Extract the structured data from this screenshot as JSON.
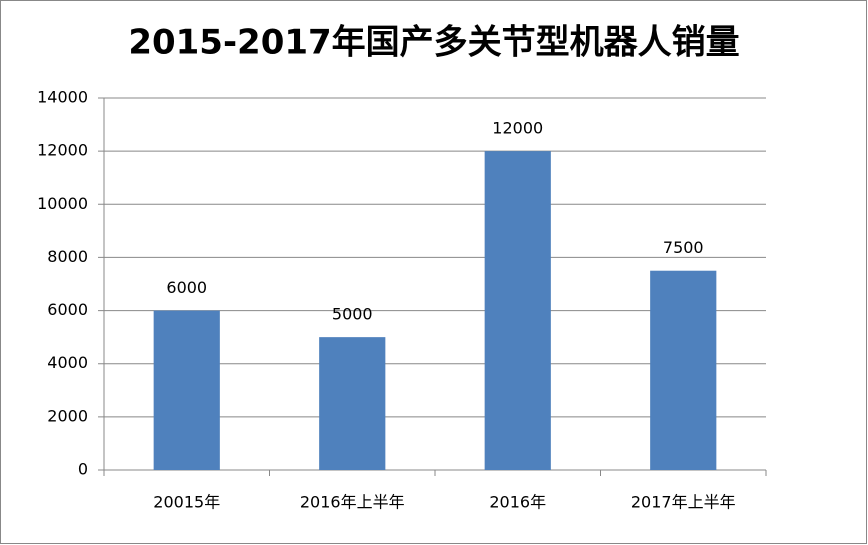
{
  "chart_data": {
    "type": "bar",
    "title": "2015-2017年国产多关节型机器人销量",
    "categories": [
      "20015年",
      "2016年上半年",
      "2016年",
      "2017年上半年"
    ],
    "values": [
      6000,
      5000,
      12000,
      7500
    ],
    "color": "#4f81bd",
    "ylim": [
      0,
      14000
    ],
    "yticks": [
      0,
      2000,
      4000,
      6000,
      8000,
      10000,
      12000,
      14000
    ],
    "grid": true
  }
}
